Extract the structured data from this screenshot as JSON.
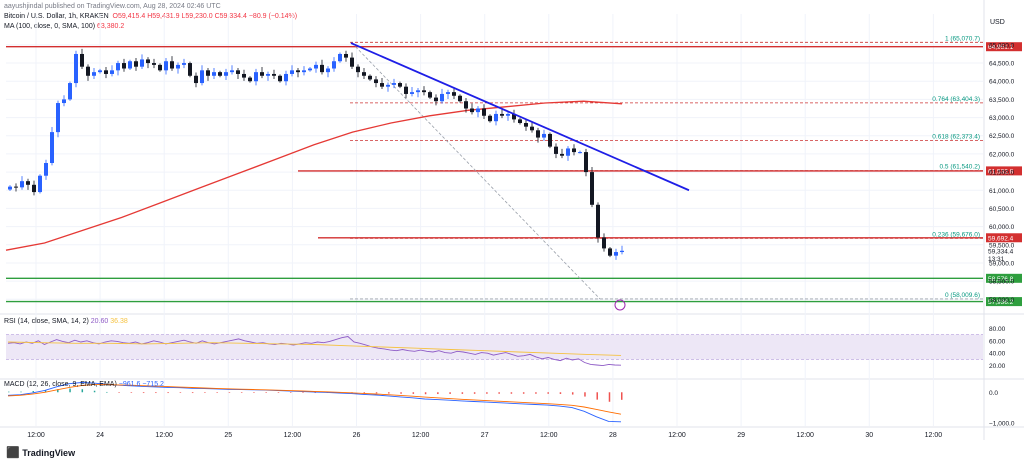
{
  "header": {
    "publisher": "aayushjindal published on TradingView.com, Aug 28, 2024 02:46 UTC",
    "symbol": "Bitcoin / U.S. Dollar, 1h, KRAKEN",
    "o": "O59,415.4",
    "h": "H59,431.9",
    "l": "L59,230.0",
    "c": "C59,334.4",
    "chg": "−80.9 (−0.14%)",
    "ma": "MA (100, close, 0, SMA, 100)",
    "ma_val": "63,380.2",
    "rsi": "RSI (14, close, SMA, 14, 2)",
    "rsi_val": "20.60",
    "rsi_ma": "36.38",
    "macd": "MACD (12, 26, close, 9, EMA, EMA)",
    "macd_vals": "−961.6  −715.2",
    "currency": "USD"
  },
  "colors": {
    "up": "#2962ff",
    "down": "#131722",
    "ma": "#e53935",
    "trend": "#1e1ee6",
    "level": "#d32f2f",
    "fib": "#cc3333",
    "fib_text": "#089981",
    "support": "#2e9e3e",
    "rsi": "#8e5bc6",
    "rsi_ma": "#f5c242",
    "macd": "#2962ff",
    "signal": "#ff6d00"
  },
  "chart_data": [
    {
      "type": "candlestick",
      "title": "Bitcoin / U.S. Dollar, 1h, KRAKEN",
      "ylim": [
        57650,
        65850
      ],
      "y_ticks": [
        "65,000.0",
        "64,500.0",
        "64,000.0",
        "63,500.0",
        "63,000.0",
        "62,500.0",
        "62,000.0",
        "61,500.0",
        "61,000.0",
        "60,500.0",
        "60,000.0",
        "59,500.0",
        "59,000.0",
        "58,500.0",
        "58,000.0"
      ],
      "x_ticks": [
        "12:00",
        "24",
        "12:00",
        "25",
        "12:00",
        "26",
        "12:00",
        "27",
        "12:00",
        "28",
        "12:00",
        "29",
        "12:00",
        "30",
        "12:00"
      ],
      "closes": [
        61100,
        61080,
        61250,
        61150,
        60950,
        61400,
        61750,
        62600,
        63400,
        63500,
        63950,
        64750,
        64400,
        64150,
        64250,
        64300,
        64200,
        64300,
        64500,
        64350,
        64550,
        64400,
        64600,
        64500,
        64450,
        64300,
        64550,
        64350,
        64450,
        64500,
        64150,
        63950,
        64300,
        64150,
        64250,
        64150,
        64250,
        64300,
        64200,
        64100,
        64000,
        64250,
        64150,
        64200,
        64150,
        64000,
        64200,
        64300,
        64250,
        64300,
        64350,
        64450,
        64250,
        64350,
        64550,
        64750,
        64650,
        64400,
        64250,
        64150,
        64050,
        63950,
        63850,
        63900,
        63950,
        63850,
        63650,
        63700,
        63750,
        63700,
        63550,
        63450,
        63650,
        63700,
        63600,
        63450,
        63250,
        63150,
        63250,
        63050,
        62900,
        63100,
        63050,
        63100,
        62950,
        62850,
        62750,
        62650,
        62450,
        62550,
        62200,
        62000,
        61950,
        62150,
        62050,
        62050,
        61500,
        60600,
        59700,
        59400,
        59200,
        59300,
        59334.4
      ],
      "series": [
        {
          "name": "MA (100, close, 0, SMA, 100)",
          "values": [
            59350,
            59550,
            59900,
            60250,
            60650,
            61050,
            61450,
            61850,
            62250,
            62600,
            62850,
            63050,
            63200,
            63300,
            63400,
            63450,
            63380.2
          ]
        }
      ],
      "annotations": {
        "horizontal_levels": [
          {
            "value": 64950,
            "label": "64,951.1",
            "color": "#d32f2f"
          },
          {
            "value": 61532.8,
            "label": "61,532.8",
            "color": "#d32f2f"
          },
          {
            "value": 59692.4,
            "label": "59,692.4",
            "color": "#d32f2f"
          },
          {
            "value": 58576.8,
            "label": "58,576.8",
            "color": "#2e9e3e"
          },
          {
            "value": 57936.2,
            "label": "57,936.2",
            "color": "#2e9e3e"
          }
        ],
        "fibonacci": [
          {
            "ratio": "1",
            "value": 65070.7,
            "label": "1 (65,070.7)"
          },
          {
            "ratio": "0.764",
            "value": 63404.3,
            "label": "0.764 (63,404.3)"
          },
          {
            "ratio": "0.618",
            "value": 62373.4,
            "label": "0.618 (62,373.4)"
          },
          {
            "ratio": "0.5",
            "value": 61540.2,
            "label": "0.5 (61,540.2)"
          },
          {
            "ratio": "0.236",
            "value": 59676.0,
            "label": "0.236 (59,676.0)"
          },
          {
            "ratio": "0",
            "value": 58009.6,
            "label": "0 (58,009.6)"
          }
        ],
        "trend_line": {
          "from": [
            65050,
            "26"
          ],
          "to": [
            61000,
            "28 12:00"
          ]
        },
        "last_price": {
          "value": 59334.4,
          "label": "59,334.4",
          "countdown": "13:31"
        }
      }
    },
    {
      "type": "line",
      "title": "RSI (14, close, SMA, 14, 2)",
      "ylim": [
        0,
        100
      ],
      "y_ticks": [
        "80.00",
        "60.00",
        "40.00",
        "20.00"
      ],
      "band": [
        30,
        70
      ],
      "series": [
        {
          "name": "RSI",
          "values": [
            56,
            57,
            55,
            58,
            56,
            60,
            54,
            58,
            62,
            59,
            57,
            61,
            58,
            60,
            57,
            55,
            58,
            60,
            59,
            57,
            56,
            58,
            55,
            57,
            60,
            58,
            55,
            57,
            59,
            61,
            58,
            56,
            60,
            57,
            55,
            57,
            59,
            61,
            63,
            60,
            58,
            56,
            57,
            55,
            54,
            56,
            55,
            53,
            55,
            57,
            56,
            58,
            57,
            59,
            62,
            65,
            67,
            58,
            56,
            53,
            50,
            48,
            47,
            45,
            44,
            46,
            44,
            43,
            45,
            43,
            42,
            44,
            41,
            40,
            43,
            42,
            40,
            38,
            41,
            40,
            37,
            39,
            41,
            38,
            35,
            36,
            38,
            34,
            31,
            33,
            30,
            28,
            32,
            29,
            31,
            25,
            22,
            21,
            20,
            22,
            21,
            20.6
          ]
        },
        {
          "name": "RSI-based MA",
          "values": [
            58,
            57,
            56,
            56,
            55,
            56,
            57,
            56,
            55,
            54,
            52,
            50,
            48,
            46,
            44,
            42,
            40,
            38,
            36.38
          ]
        }
      ]
    },
    {
      "type": "line",
      "title": "MACD (12, 26, close, 9, EMA, EMA)",
      "y_ticks": [
        "0.0",
        "−1,000.0"
      ],
      "series": [
        {
          "name": "MACD",
          "values": [
            -100,
            -80,
            -20,
            60,
            180,
            280,
            320,
            300,
            260,
            230,
            210,
            190,
            175,
            160,
            150,
            130,
            120,
            110,
            95,
            90,
            80,
            70,
            55,
            40,
            25,
            10,
            -5,
            -25,
            -45,
            -70,
            -90,
            -120,
            -150,
            -180,
            -220,
            -240,
            -260,
            -280,
            -300,
            -320,
            -340,
            -360,
            -380,
            -400,
            -420,
            -450,
            -500,
            -620,
            -800,
            -950,
            -961.6
          ]
        },
        {
          "name": "Signal",
          "values": [
            -120,
            -100,
            -60,
            0,
            80,
            160,
            220,
            250,
            250,
            240,
            230,
            215,
            200,
            185,
            170,
            155,
            140,
            125,
            112,
            100,
            90,
            80,
            68,
            55,
            42,
            28,
            14,
            -2,
            -18,
            -36,
            -56,
            -78,
            -102,
            -128,
            -156,
            -182,
            -206,
            -228,
            -250,
            -272,
            -292,
            -312,
            -332,
            -352,
            -372,
            -395,
            -425,
            -480,
            -560,
            -640,
            -715.2
          ]
        }
      ]
    }
  ]
}
